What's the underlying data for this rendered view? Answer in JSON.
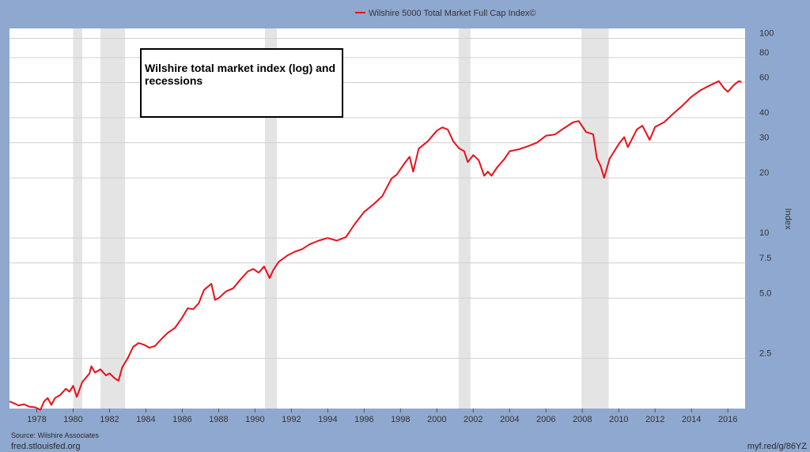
{
  "chart_data": {
    "type": "line",
    "y_scale": "log",
    "series": [
      {
        "name": "Wilshire 5000 Total Market Full Cap Index©",
        "color": "#e8101a",
        "points": [
          [
            1976.5,
            1.52
          ],
          [
            1976.8,
            1.48
          ],
          [
            1977.0,
            1.45
          ],
          [
            1977.3,
            1.47
          ],
          [
            1977.6,
            1.43
          ],
          [
            1977.9,
            1.42
          ],
          [
            1978.2,
            1.38
          ],
          [
            1978.4,
            1.52
          ],
          [
            1978.6,
            1.58
          ],
          [
            1978.8,
            1.46
          ],
          [
            1979.0,
            1.58
          ],
          [
            1979.3,
            1.64
          ],
          [
            1979.6,
            1.76
          ],
          [
            1979.8,
            1.7
          ],
          [
            1980.0,
            1.82
          ],
          [
            1980.2,
            1.6
          ],
          [
            1980.5,
            1.9
          ],
          [
            1980.9,
            2.1
          ],
          [
            1981.0,
            2.28
          ],
          [
            1981.2,
            2.12
          ],
          [
            1981.5,
            2.2
          ],
          [
            1981.8,
            2.05
          ],
          [
            1982.0,
            2.1
          ],
          [
            1982.3,
            1.98
          ],
          [
            1982.5,
            1.93
          ],
          [
            1982.7,
            2.25
          ],
          [
            1983.0,
            2.5
          ],
          [
            1983.3,
            2.85
          ],
          [
            1983.6,
            2.98
          ],
          [
            1983.9,
            2.92
          ],
          [
            1984.2,
            2.82
          ],
          [
            1984.5,
            2.88
          ],
          [
            1984.9,
            3.15
          ],
          [
            1985.2,
            3.35
          ],
          [
            1985.6,
            3.55
          ],
          [
            1986.0,
            4.0
          ],
          [
            1986.3,
            4.45
          ],
          [
            1986.6,
            4.4
          ],
          [
            1986.9,
            4.7
          ],
          [
            1987.2,
            5.5
          ],
          [
            1987.6,
            5.9
          ],
          [
            1987.8,
            4.9
          ],
          [
            1988.0,
            5.0
          ],
          [
            1988.4,
            5.4
          ],
          [
            1988.8,
            5.6
          ],
          [
            1989.2,
            6.2
          ],
          [
            1989.6,
            6.8
          ],
          [
            1989.9,
            7.0
          ],
          [
            1990.2,
            6.7
          ],
          [
            1990.5,
            7.2
          ],
          [
            1990.8,
            6.3
          ],
          [
            1991.0,
            6.9
          ],
          [
            1991.3,
            7.6
          ],
          [
            1991.8,
            8.2
          ],
          [
            1992.2,
            8.55
          ],
          [
            1992.6,
            8.8
          ],
          [
            1993.0,
            9.3
          ],
          [
            1993.5,
            9.7
          ],
          [
            1994.0,
            10.0
          ],
          [
            1994.5,
            9.7
          ],
          [
            1995.0,
            10.1
          ],
          [
            1995.5,
            11.8
          ],
          [
            1996.0,
            13.5
          ],
          [
            1996.5,
            14.7
          ],
          [
            1997.0,
            16.2
          ],
          [
            1997.5,
            19.8
          ],
          [
            1997.8,
            20.8
          ],
          [
            1998.2,
            23.5
          ],
          [
            1998.5,
            25.5
          ],
          [
            1998.7,
            21.5
          ],
          [
            1999.0,
            28.0
          ],
          [
            1999.5,
            30.5
          ],
          [
            2000.0,
            34.5
          ],
          [
            2000.3,
            35.8
          ],
          [
            2000.6,
            34.9
          ],
          [
            2000.9,
            30.5
          ],
          [
            2001.2,
            28.2
          ],
          [
            2001.5,
            27.2
          ],
          [
            2001.7,
            24.0
          ],
          [
            2002.0,
            26.0
          ],
          [
            2002.3,
            24.5
          ],
          [
            2002.6,
            20.5
          ],
          [
            2002.8,
            21.5
          ],
          [
            2003.0,
            20.5
          ],
          [
            2003.3,
            22.5
          ],
          [
            2003.7,
            24.8
          ],
          [
            2004.0,
            27.2
          ],
          [
            2004.5,
            27.8
          ],
          [
            2005.0,
            28.8
          ],
          [
            2005.5,
            30.0
          ],
          [
            2006.0,
            32.5
          ],
          [
            2006.5,
            33.0
          ],
          [
            2007.0,
            35.5
          ],
          [
            2007.5,
            38.0
          ],
          [
            2007.8,
            38.5
          ],
          [
            2008.2,
            34.0
          ],
          [
            2008.6,
            33.0
          ],
          [
            2008.8,
            25.0
          ],
          [
            2009.0,
            23.0
          ],
          [
            2009.2,
            20.0
          ],
          [
            2009.5,
            25.0
          ],
          [
            2010.0,
            29.5
          ],
          [
            2010.3,
            32.0
          ],
          [
            2010.5,
            28.5
          ],
          [
            2011.0,
            35.0
          ],
          [
            2011.3,
            36.5
          ],
          [
            2011.7,
            31.0
          ],
          [
            2012.0,
            36.0
          ],
          [
            2012.5,
            38.0
          ],
          [
            2013.0,
            42.0
          ],
          [
            2013.5,
            46.0
          ],
          [
            2014.0,
            51.0
          ],
          [
            2014.5,
            55.0
          ],
          [
            2015.0,
            58.0
          ],
          [
            2015.5,
            61.0
          ],
          [
            2015.8,
            56.0
          ],
          [
            2016.0,
            54.0
          ],
          [
            2016.3,
            58.0
          ],
          [
            2016.6,
            61.0
          ],
          [
            2016.75,
            60.5
          ]
        ]
      }
    ],
    "x_ticks": [
      "1978",
      "1980",
      "1982",
      "1984",
      "1986",
      "1988",
      "1990",
      "1992",
      "1994",
      "1996",
      "1998",
      "2000",
      "2002",
      "2004",
      "2006",
      "2008",
      "2010",
      "2012",
      "2014",
      "2016"
    ],
    "y_ticks": [
      "2.5",
      "5.0",
      "7.5",
      "10",
      "20",
      "30",
      "40",
      "60",
      "80",
      "100"
    ],
    "ylabel": "Index",
    "annotation": "Wilshire total market index (log) and recessions",
    "recessions": [
      [
        1980.0,
        1980.5
      ],
      [
        1981.5,
        1982.85
      ],
      [
        1990.55,
        1991.2
      ],
      [
        2001.2,
        2001.85
      ],
      [
        2007.95,
        2009.45
      ]
    ],
    "grid": "horizontal",
    "legend_position": "top-center",
    "colors": {
      "background": "#8fa8cf",
      "plot_background": "#ffffff",
      "recession_shade": "#e4e4e4",
      "gridline": "#d0d0d0",
      "line": "#e8101a"
    }
  },
  "footer": {
    "source": "Source: Wilshire Associates",
    "site": "fred.stlouisfed.org",
    "short_url": "myf.red/g/86YZ"
  }
}
